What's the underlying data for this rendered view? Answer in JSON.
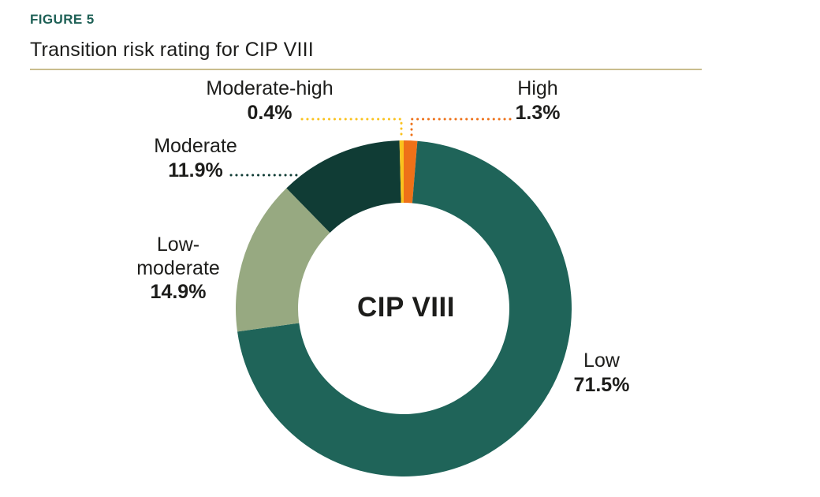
{
  "figure": {
    "label": "FIGURE 5",
    "title": "Transition risk rating for CIP VIII"
  },
  "chart_data": {
    "type": "pie",
    "subtype": "donut",
    "title": "Transition risk rating for CIP VIII",
    "center_label": "CIP VIII",
    "start_angle_deg": 0,
    "direction": "clockwise",
    "draw_order_clockwise_from_top": [
      "High",
      "Low",
      "Low-moderate",
      "Moderate",
      "Moderate-high"
    ],
    "segments": [
      {
        "label": "Low",
        "value": 71.5,
        "display": "71.5%",
        "color": "#1f6459"
      },
      {
        "label": "Low-moderate",
        "value": 14.9,
        "display": "14.9%",
        "color": "#97a981"
      },
      {
        "label": "Moderate",
        "value": 11.9,
        "display": "11.9%",
        "color": "#103c35"
      },
      {
        "label": "Moderate-high",
        "value": 0.4,
        "display": "0.4%",
        "color": "#fac21d"
      },
      {
        "label": "High",
        "value": 1.3,
        "display": "1.3%",
        "color": "#ee7118"
      }
    ],
    "legend_position": "callouts",
    "leader_line_style": "dotted"
  },
  "callouts": {
    "moderate_high": {
      "name": "Moderate-high",
      "value": "0.4%"
    },
    "high": {
      "name": "High",
      "value": "1.3%"
    },
    "moderate": {
      "name": "Moderate",
      "value": "11.9%"
    },
    "low_moderate": {
      "name_line1": "Low-",
      "name_line2": "moderate",
      "value": "14.9%"
    },
    "low": {
      "name": "Low",
      "value": "71.5%"
    }
  },
  "colors": {
    "figure_label": "#1e6056",
    "rule": "#c9bd8e",
    "text": "#1d1d1b",
    "background": "#ffffff"
  }
}
